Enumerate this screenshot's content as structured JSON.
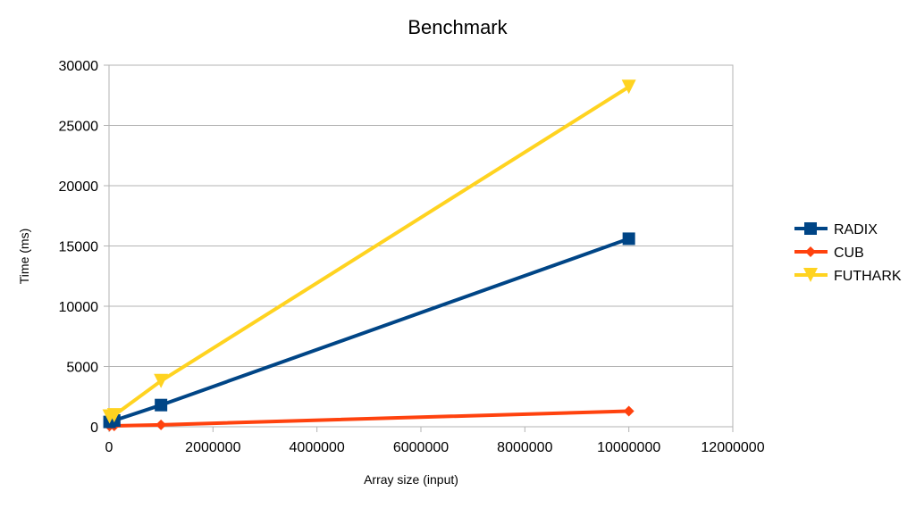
{
  "chart_data": {
    "type": "line",
    "title": "Benchmark",
    "xlabel": "Array size (input)",
    "ylabel": "Time (ms)",
    "xlim": [
      0,
      12000000
    ],
    "ylim": [
      0,
      30000
    ],
    "x_ticks": [
      0,
      2000000,
      4000000,
      6000000,
      8000000,
      10000000,
      12000000
    ],
    "y_ticks": [
      0,
      5000,
      10000,
      15000,
      20000,
      25000,
      30000
    ],
    "grid": "horizontal",
    "legend_position": "right",
    "series": [
      {
        "name": "RADIX",
        "color": "#004586",
        "marker": "square",
        "x": [
          10000,
          100000,
          1000000,
          10000000
        ],
        "y": [
          400,
          520,
          1800,
          15600
        ]
      },
      {
        "name": "CUB",
        "color": "#ff420e",
        "marker": "diamond",
        "x": [
          10000,
          100000,
          1000000,
          10000000
        ],
        "y": [
          60,
          70,
          160,
          1300
        ]
      },
      {
        "name": "FUTHARK",
        "color": "#ffd320",
        "marker": "triangle-down",
        "x": [
          10000,
          100000,
          1000000,
          10000000
        ],
        "y": [
          850,
          950,
          3800,
          28200
        ]
      }
    ]
  }
}
